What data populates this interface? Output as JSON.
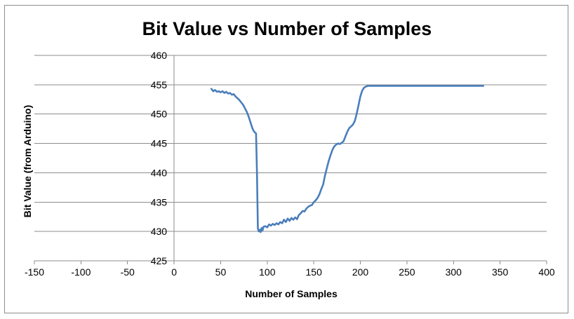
{
  "chart_data": {
    "type": "line",
    "title": "Bit Value vs Number of Samples",
    "xlabel": "Number of Samples",
    "ylabel": "Bit Value (from Arduino)",
    "xlim": [
      -150,
      400
    ],
    "ylim": [
      425,
      460
    ],
    "x_ticks": [
      -150,
      -100,
      -50,
      0,
      50,
      100,
      150,
      200,
      250,
      300,
      350,
      400
    ],
    "y_ticks": [
      425,
      430,
      435,
      440,
      445,
      450,
      455,
      460
    ],
    "grid": true,
    "legend": "none",
    "line_color": "#4A7EBB",
    "series": [
      {
        "x": [
          40,
          42,
          44,
          46,
          48,
          50,
          52,
          54,
          56,
          58,
          60,
          62,
          64,
          66,
          68,
          70,
          72,
          74,
          76,
          78,
          80,
          82,
          84,
          86,
          88,
          89,
          90,
          91,
          92,
          93,
          94,
          95,
          96,
          98,
          100,
          102,
          104,
          106,
          108,
          110,
          112,
          114,
          116,
          118,
          120,
          122,
          124,
          126,
          128,
          130,
          132,
          134,
          136,
          138,
          140,
          142,
          144,
          146,
          148,
          150,
          152,
          154,
          156,
          158,
          160,
          162,
          164,
          166,
          168,
          170,
          172,
          174,
          176,
          178,
          180,
          182,
          184,
          186,
          188,
          190,
          192,
          194,
          196,
          198,
          200,
          202,
          204,
          206,
          208,
          210,
          214,
          218,
          225,
          240,
          260,
          280,
          300,
          320,
          332
        ],
        "values": [
          454.3,
          453.9,
          454.1,
          453.8,
          453.9,
          453.7,
          453.9,
          453.6,
          453.8,
          453.5,
          453.6,
          453.3,
          453.4,
          453.0,
          452.7,
          452.4,
          452.0,
          451.6,
          451.0,
          450.4,
          449.6,
          448.6,
          447.6,
          447.0,
          446.7,
          440.0,
          430.5,
          430.0,
          430.3,
          429.9,
          430.6,
          430.2,
          430.8,
          430.9,
          430.7,
          431.2,
          431.0,
          431.3,
          431.1,
          431.4,
          431.2,
          431.6,
          431.4,
          432.0,
          431.6,
          432.2,
          431.8,
          432.3,
          432.0,
          432.4,
          432.1,
          432.8,
          433.1,
          433.5,
          433.4,
          433.9,
          434.2,
          434.4,
          434.5,
          435.0,
          435.3,
          435.7,
          436.3,
          437.2,
          438.0,
          439.5,
          440.8,
          442.0,
          443.0,
          443.9,
          444.5,
          444.8,
          445.0,
          444.9,
          445.1,
          445.4,
          446.2,
          447.0,
          447.6,
          447.9,
          448.2,
          448.8,
          450.0,
          451.5,
          453.0,
          454.0,
          454.5,
          454.7,
          454.8,
          454.8,
          454.8,
          454.8,
          454.8,
          454.8,
          454.8,
          454.8,
          454.8,
          454.8,
          454.8
        ]
      }
    ]
  }
}
